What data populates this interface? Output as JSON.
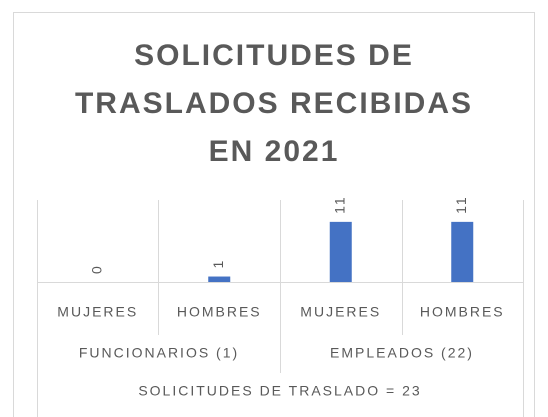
{
  "chart_data": {
    "type": "bar",
    "title": [
      "SOLICITUDES DE",
      "TRASLADOS RECIBIDAS",
      "EN 2021"
    ],
    "categories": [
      "MUJERES",
      "HOMBRES",
      "MUJERES",
      "HOMBRES"
    ],
    "category_groups": [
      "FUNCIONARIOS (1)",
      "EMPLEADOS (22)"
    ],
    "category_supergroup": "SOLICITUDES DE TRASLADO = 23",
    "values": [
      0,
      1,
      11,
      11
    ],
    "color": "#4472c4",
    "ylim": [
      0,
      15
    ]
  }
}
